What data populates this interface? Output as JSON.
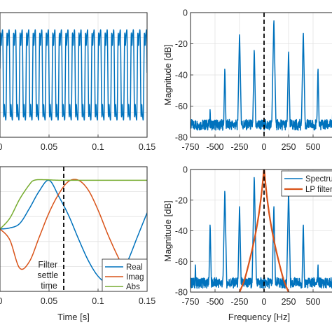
{
  "chart_data": [
    {
      "type": "line",
      "panel": "top-left",
      "title": "",
      "xlabel": "",
      "ylabel": "",
      "xlim": [
        0,
        0.15
      ],
      "xticks": [
        0,
        0.05,
        0.1,
        0.15
      ],
      "x_tick_labels": [
        "0",
        "0.05",
        "0.1",
        "0.15"
      ],
      "ylim": [
        -1.25,
        1.25
      ],
      "grid": true,
      "series": [
        {
          "name": "",
          "color": "#0072BD",
          "signal": "periodic waveform",
          "period": 0.00667,
          "amplitude": 1.0
        }
      ]
    },
    {
      "type": "line",
      "panel": "top-right",
      "title": "",
      "xlabel": "",
      "ylabel": "Magnitude [dB]",
      "xlim": [
        -750,
        750
      ],
      "xticks": [
        -750,
        -500,
        -250,
        0,
        250,
        500
      ],
      "x_tick_labels": [
        "-750",
        "-500",
        "-250",
        "0",
        "250",
        "500"
      ],
      "ylim": [
        -80,
        0
      ],
      "yticks": [
        -80,
        -60,
        -40,
        -20,
        0
      ],
      "y_tick_labels": [
        "-80",
        "-60",
        "-40",
        "-20",
        "0"
      ],
      "grid": true,
      "series": [
        {
          "name": "",
          "color": "#0072BD",
          "noise_floor_db": -72,
          "peaks": [
            {
              "x": -550,
              "y": -60
            },
            {
              "x": -400,
              "y": -34
            },
            {
              "x": -250,
              "y": -12
            },
            {
              "x": -100,
              "y": -22
            },
            {
              "x": 100,
              "y": -3
            },
            {
              "x": 250,
              "y": -23
            },
            {
              "x": 400,
              "y": -11
            },
            {
              "x": 550,
              "y": -34
            },
            {
              "x": 700,
              "y": -59
            }
          ]
        }
      ],
      "annotations": [
        {
          "type": "vline",
          "x": 0,
          "style": "dashed"
        }
      ]
    },
    {
      "type": "line",
      "panel": "bottom-left",
      "title": "",
      "xlabel": "Time [s]",
      "ylabel": "",
      "xlim": [
        0,
        0.15
      ],
      "xticks": [
        0,
        0.05,
        0.1,
        0.15
      ],
      "x_tick_labels": [
        "0",
        "0.05",
        "0.1",
        "0.15"
      ],
      "ylim": [
        -1.15,
        1.15
      ],
      "grid": true,
      "legend": "bottom-right",
      "series": [
        {
          "name": "Real",
          "color": "#0072BD",
          "x": [
            0,
            0.01,
            0.02,
            0.03,
            0.04,
            0.05,
            0.06,
            0.07,
            0.08,
            0.09,
            0.1,
            0.11,
            0.12,
            0.13,
            0.14,
            0.15
          ],
          "y": [
            0,
            0.02,
            0.1,
            0.38,
            0.7,
            0.9,
            0.6,
            0.25,
            -0.18,
            -0.58,
            -0.87,
            -1.0,
            -0.92,
            -0.6,
            -0.15,
            0.3
          ]
        },
        {
          "name": "Imag",
          "color": "#D95319",
          "x": [
            0,
            0.01,
            0.02,
            0.03,
            0.04,
            0.05,
            0.06,
            0.07,
            0.08,
            0.09,
            0.1,
            0.11,
            0.12,
            0.13,
            0.14,
            0.15
          ],
          "y": [
            0,
            -0.2,
            -0.72,
            -0.6,
            -0.15,
            0.3,
            0.65,
            0.88,
            0.9,
            0.72,
            0.35,
            -0.1,
            -0.5,
            -0.85,
            -1.0,
            -0.92
          ]
        },
        {
          "name": "Abs",
          "color": "#77AC30",
          "x": [
            0,
            0.01,
            0.02,
            0.03,
            0.035,
            0.045,
            0.06,
            0.08,
            0.1,
            0.12,
            0.15
          ],
          "y": [
            0,
            0.2,
            0.55,
            0.82,
            0.9,
            0.91,
            0.9,
            0.9,
            0.9,
            0.9,
            0.9
          ]
        }
      ],
      "annotations": [
        {
          "type": "vline",
          "x": 0.065,
          "style": "dashed",
          "text": "Filter settle time"
        }
      ],
      "annotation_lines": [
        "Filter",
        "settle",
        "time"
      ]
    },
    {
      "type": "line",
      "panel": "bottom-right",
      "title": "",
      "xlabel": "Frequency [Hz]",
      "ylabel": "Magnitude [dB]",
      "xlim": [
        -750,
        750
      ],
      "xticks": [
        -750,
        -500,
        -250,
        0,
        250,
        500
      ],
      "x_tick_labels": [
        "-750",
        "-500",
        "-250",
        "0",
        "250",
        "500"
      ],
      "ylim": [
        -80,
        0
      ],
      "yticks": [
        -80,
        -60,
        -40,
        -20,
        0
      ],
      "y_tick_labels": [
        "-80",
        "-60",
        "-40",
        "-20",
        "0"
      ],
      "grid": true,
      "legend": "top-right",
      "series": [
        {
          "name": "Spectrum",
          "color": "#0072BD",
          "noise_floor_db": -74,
          "peaks": [
            {
              "x": -700,
              "y": -60
            },
            {
              "x": -550,
              "y": -34
            },
            {
              "x": -400,
              "y": -12
            },
            {
              "x": -250,
              "y": -22
            },
            {
              "x": -100,
              "y": -3
            },
            {
              "x": 100,
              "y": -22
            },
            {
              "x": 250,
              "y": -12
            },
            {
              "x": 400,
              "y": -34
            },
            {
              "x": 550,
              "y": -60
            }
          ]
        },
        {
          "name": "LP filter",
          "color": "#D95319",
          "x": [
            -250,
            -200,
            -150,
            -100,
            -60,
            -30,
            -10,
            0,
            10,
            30,
            60,
            100,
            150,
            200,
            250
          ],
          "y": [
            -80,
            -72,
            -60,
            -46,
            -32,
            -18,
            -6,
            0,
            -6,
            -18,
            -32,
            -46,
            -60,
            -72,
            -80
          ]
        }
      ],
      "annotations": [
        {
          "type": "vline",
          "x": 0,
          "style": "dashed"
        }
      ]
    }
  ]
}
